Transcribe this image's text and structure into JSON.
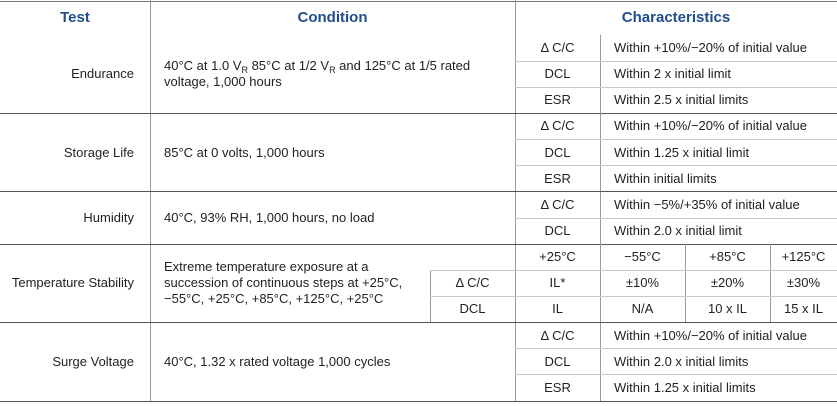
{
  "header": {
    "test": "Test",
    "condition": "Condition",
    "characteristics": "Characteristics"
  },
  "rows": [
    {
      "test": "Endurance",
      "condition": [
        "40°C at 1.0 V",
        {
          "text": "R",
          "sub": true
        },
        " 85°C at 1/2 V",
        {
          "text": "R",
          "sub": true
        },
        " and 125°C at 1/5 rated voltage, 1,000 hours"
      ],
      "characteristics": [
        [
          "Δ C/C",
          "Within +10%/−20%  of initial value"
        ],
        [
          "DCL",
          "Within 2 x initial limit"
        ],
        [
          "ESR",
          "Within 2.5 x initial limits"
        ]
      ]
    },
    {
      "test": "Storage Life",
      "condition": [
        "85°C at 0 volts, 1,000 hours"
      ],
      "characteristics": [
        [
          "Δ C/C",
          "Within +10%/−20%  of initial value"
        ],
        [
          "DCL",
          "Within 1.25 x initial limit"
        ],
        [
          "ESR",
          "Within initial limits"
        ]
      ]
    },
    {
      "test": "Humidity",
      "condition": [
        "40°C, 93% RH, 1,000 hours, no load"
      ],
      "characteristics": [
        [
          "Δ C/C",
          "Within −5%/+35% of initial value"
        ],
        [
          "DCL",
          "Within 2.0 x initial limit"
        ]
      ]
    },
    {
      "test": "Temperature Stability",
      "condition": [
        "Extreme temperature exposure at a succession of continuous steps at +25°C, −55°C, +25°C, +85°C, +125°C, +25°C"
      ],
      "parameters": [
        "Δ C/C",
        "DCL"
      ],
      "temperatures": [
        "+25°C",
        "−55°C",
        "+85°C",
        "+125°C"
      ],
      "values": [
        [
          "IL*",
          "±10%",
          "±20%",
          "±30%"
        ],
        [
          "IL",
          "N/A",
          "10 x IL",
          "15 x IL"
        ]
      ]
    },
    {
      "test": "Surge Voltage",
      "condition": [
        "40°C, 1.32 x rated voltage 1,000 cycles"
      ],
      "characteristics": [
        [
          "Δ C/C",
          "Within +10%/−20% of initial value"
        ],
        [
          "DCL",
          "Within 2.0 x initial limits"
        ],
        [
          "ESR",
          "Within 1.25 x initial limits"
        ]
      ]
    }
  ]
}
